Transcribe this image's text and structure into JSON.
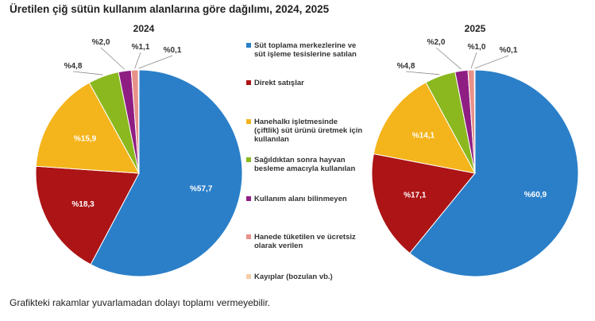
{
  "title": "Üretilen çiğ sütün kullanım alanlarına göre dağılımı, 2024, 2025",
  "footnote": "Grafikteki rakamlar yuvarlamadan dolayı toplamı vermeyebilir.",
  "colors": [
    "#2b7fc8",
    "#ac1416",
    "#f4b41b",
    "#8bb81f",
    "#8f1e83",
    "#e8918a",
    "#f6cda8"
  ],
  "chart_data": [
    {
      "type": "pie",
      "title": "2024",
      "categories": [
        "Süt toplama merkezlerine ve süt işleme tesislerine satılan",
        "Direkt satışlar",
        "Hanehalkı işletmesinde (çiftlik) süt ürünü üretmek için kullanılan",
        "Sağıldıktan sonra hayvan besleme amacıyla kullanılan",
        "Kullanım alanı bilinmeyen",
        "Hanede tüketilen ve ücretsiz olarak verilen",
        "Kayıplar (bozulan vb.)"
      ],
      "values": [
        57.7,
        18.3,
        15.9,
        4.8,
        2.0,
        1.1,
        0.1
      ],
      "labels": [
        "%57,7",
        "%18,3",
        "%15,9",
        "%4,8",
        "%2,0",
        "%1,1",
        "%0,1"
      ]
    },
    {
      "type": "pie",
      "title": "2025",
      "categories": [
        "Süt toplama merkezlerine ve süt işleme tesislerine satılan",
        "Direkt satışlar",
        "Hanehalkı işletmesinde (çiftlik) süt ürünü üretmek için kullanılan",
        "Sağıldıktan sonra hayvan besleme amacıyla kullanılan",
        "Kullanım alanı bilinmeyen",
        "Hanede tüketilen ve ücretsiz olarak verilen",
        "Kayıplar (bozulan vb.)"
      ],
      "values": [
        60.9,
        17.1,
        14.1,
        4.8,
        2.0,
        1.0,
        0.1
      ],
      "labels": [
        "%60,9",
        "%17,1",
        "%14,1",
        "%4,8",
        "%2,0",
        "%1,0",
        "%0,1"
      ]
    }
  ],
  "legend": [
    {
      "lines": [
        "Süt toplama merkezlerine ve",
        "süt işleme tesislerine satılan"
      ]
    },
    {
      "lines": [
        "Direkt satışlar"
      ]
    },
    {
      "lines": [
        "Hanehalkı işletmesinde",
        "(çiftlik) süt ürünü üretmek için",
        "kullanılan"
      ]
    },
    {
      "lines": [
        "Sağıldıktan sonra hayvan",
        "besleme amacıyla kullanılan"
      ]
    },
    {
      "lines": [
        "Kullanım alanı bilinmeyen"
      ]
    },
    {
      "lines": [
        "Hanede tüketilen ve ücretsiz",
        "olarak verilen"
      ]
    },
    {
      "lines": [
        "Kayıplar (bozulan vb.)"
      ]
    }
  ]
}
